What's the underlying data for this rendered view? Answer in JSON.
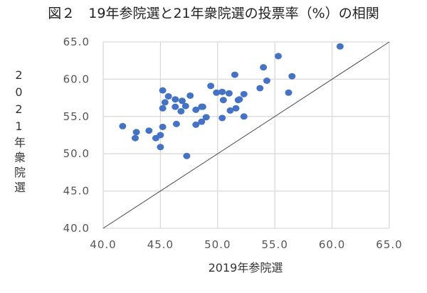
{
  "chart_data": {
    "type": "scatter",
    "title": "図２　19年参院選と21年衆院選の投票率（%）の相関",
    "xlabel": "2019年参院選",
    "ylabel": "2021年衆院選",
    "xlim": [
      40,
      65
    ],
    "ylim": [
      40,
      65
    ],
    "xticks": [
      "40.0",
      "45.0",
      "50.0",
      "55.0",
      "60.0",
      "65.0"
    ],
    "yticks": [
      "40.0",
      "45.0",
      "50.0",
      "55.0",
      "60.0",
      "65.0"
    ],
    "grid": true,
    "reference_line": "y = x",
    "color": "#4472C4",
    "points": [
      [
        41.7,
        53.7
      ],
      [
        42.9,
        52.9
      ],
      [
        42.8,
        52.1
      ],
      [
        44.0,
        53.1
      ],
      [
        44.6,
        52.1
      ],
      [
        45.0,
        52.5
      ],
      [
        45.0,
        50.9
      ],
      [
        45.2,
        53.6
      ],
      [
        45.2,
        58.5
      ],
      [
        45.7,
        57.7
      ],
      [
        45.4,
        56.9
      ],
      [
        45.2,
        56.1
      ],
      [
        46.3,
        57.3
      ],
      [
        46.9,
        57.1
      ],
      [
        47.6,
        57.8
      ],
      [
        46.3,
        56.3
      ],
      [
        47.2,
        56.4
      ],
      [
        46.8,
        55.7
      ],
      [
        46.4,
        54.0
      ],
      [
        47.3,
        49.7
      ],
      [
        48.1,
        55.9
      ],
      [
        48.6,
        56.3
      ],
      [
        48.7,
        56.3
      ],
      [
        48.1,
        53.9
      ],
      [
        48.6,
        54.3
      ],
      [
        49.0,
        54.9
      ],
      [
        49.4,
        59.1
      ],
      [
        49.9,
        58.2
      ],
      [
        50.4,
        58.3
      ],
      [
        51.0,
        58.1
      ],
      [
        50.5,
        57.2
      ],
      [
        51.5,
        60.6
      ],
      [
        50.4,
        54.8
      ],
      [
        51.1,
        55.8
      ],
      [
        51.6,
        56.1
      ],
      [
        51.8,
        57.2
      ],
      [
        51.9,
        57.3
      ],
      [
        52.3,
        58.0
      ],
      [
        52.3,
        55.0
      ],
      [
        53.7,
        58.8
      ],
      [
        54.0,
        61.6
      ],
      [
        54.3,
        59.8
      ],
      [
        55.3,
        63.1
      ],
      [
        56.2,
        58.2
      ],
      [
        56.5,
        60.4
      ],
      [
        60.7,
        64.4
      ]
    ]
  }
}
